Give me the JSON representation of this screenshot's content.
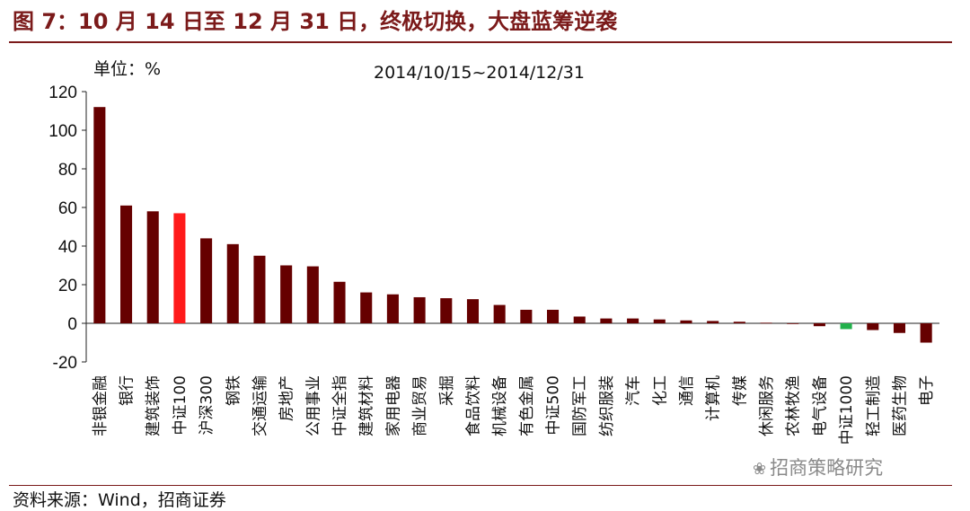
{
  "header": {
    "title": "图 7：10 月 14 日至 12 月 31 日，终极切换，大盘蓝筹逆袭"
  },
  "chart_data": {
    "type": "bar",
    "subtitle": "2014/10/15~2014/12/31",
    "unit_label": "单位：%",
    "ylim": [
      -20,
      120
    ],
    "yticks": [
      -20,
      0,
      20,
      40,
      60,
      80,
      100,
      120
    ],
    "grid": false,
    "categories": [
      "非银金融",
      "银行",
      "建筑装饰",
      "中证100",
      "沪深300",
      "钢铁",
      "交通运输",
      "房地产",
      "公用事业",
      "中证全指",
      "建筑材料",
      "家用电器",
      "商业贸易",
      "采掘",
      "食品饮料",
      "机械设备",
      "有色金属",
      "中证500",
      "国防军工",
      "纺织服装",
      "汽车",
      "化工",
      "通信",
      "计算机",
      "传媒",
      "休闲服务",
      "农林牧渔",
      "电气设备",
      "中证1000",
      "轻工制造",
      "医药生物",
      "电子"
    ],
    "values": [
      112,
      61,
      58,
      57,
      44,
      41,
      35,
      30,
      29.5,
      21.5,
      16,
      15,
      13.5,
      13,
      12.5,
      9.5,
      7,
      7,
      3.5,
      2.5,
      2.5,
      2,
      1.5,
      1.2,
      0.8,
      0.3,
      -0.3,
      -1.5,
      -3,
      -3.5,
      -5,
      -10
    ],
    "colors": {
      "default": "#660000",
      "highlight": "#ff1a1a",
      "highlight_index": 3,
      "negative_index_color": "#22b04b",
      "negative_highlight_index": 28
    }
  },
  "footer": {
    "source": "资料来源：Wind，招商证券",
    "watermark": "招商策略研究",
    "watermark_icon": "wechat-icon"
  }
}
